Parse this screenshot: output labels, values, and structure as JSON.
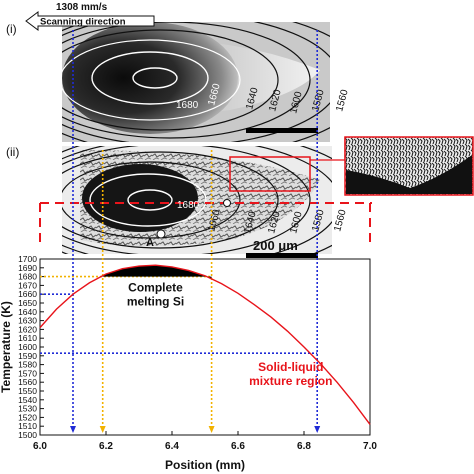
{
  "panel_i": {
    "label": "(i)",
    "speed": "1308 mm/s",
    "direction": "Scanning direction",
    "isotherms": [
      "1680",
      "1660",
      "1640",
      "1620",
      "1600",
      "1580",
      "1560"
    ]
  },
  "panel_ii": {
    "label": "(ii)",
    "point_label": "A",
    "scale_bar": "200 μm",
    "isotherms": [
      "1680",
      "1660",
      "1640",
      "1620",
      "1600",
      "1580",
      "1560"
    ]
  },
  "chart_data": {
    "type": "line",
    "xlabel": "Position (mm)",
    "ylabel": "Temperature (K)",
    "xlim": [
      6.0,
      7.0
    ],
    "ylim": [
      1500,
      1700
    ],
    "xticks": [
      "6.0",
      "6.2",
      "6.4",
      "6.6",
      "6.8",
      "7.0"
    ],
    "yticks": [
      "1500",
      "1510",
      "1520",
      "1530",
      "1540",
      "1550",
      "1560",
      "1570",
      "1580",
      "1590",
      "1600",
      "1610",
      "1620",
      "1630",
      "1640",
      "1650",
      "1660",
      "1670",
      "1680",
      "1690",
      "1700"
    ],
    "series": [
      {
        "x": [
          6.0,
          6.05,
          6.1,
          6.15,
          6.2,
          6.25,
          6.3,
          6.35,
          6.4,
          6.45,
          6.5,
          6.55,
          6.6,
          6.65,
          6.7,
          6.75,
          6.8,
          6.85,
          6.9,
          6.95,
          7.0
        ],
        "y": [
          1622,
          1643,
          1660,
          1673,
          1683,
          1689,
          1692,
          1693,
          1691,
          1687,
          1681,
          1672,
          1661,
          1648,
          1634,
          1618,
          1600,
          1581,
          1560,
          1537,
          1512
        ],
        "color": "#e8141b"
      }
    ],
    "annotations": {
      "complete_melting": "Complete\nmelting Si",
      "complete_melting_l1": "Complete",
      "complete_melting_l2": "melting Si",
      "mixture_l1": "Solid-liquid",
      "mixture_l2": "mixture region",
      "mixture_color": "#e8141b"
    },
    "guides": {
      "liquidus_K": 1680,
      "melt_start_mm": 6.19,
      "melt_end_mm": 6.52,
      "solid_K": 1660,
      "solid_mm": 6.1,
      "mix_K": 1593,
      "mix_mm": 6.84,
      "yellow": "#f2b200",
      "blue": "#1f2bd6"
    },
    "grid": false,
    "legend": "none"
  }
}
